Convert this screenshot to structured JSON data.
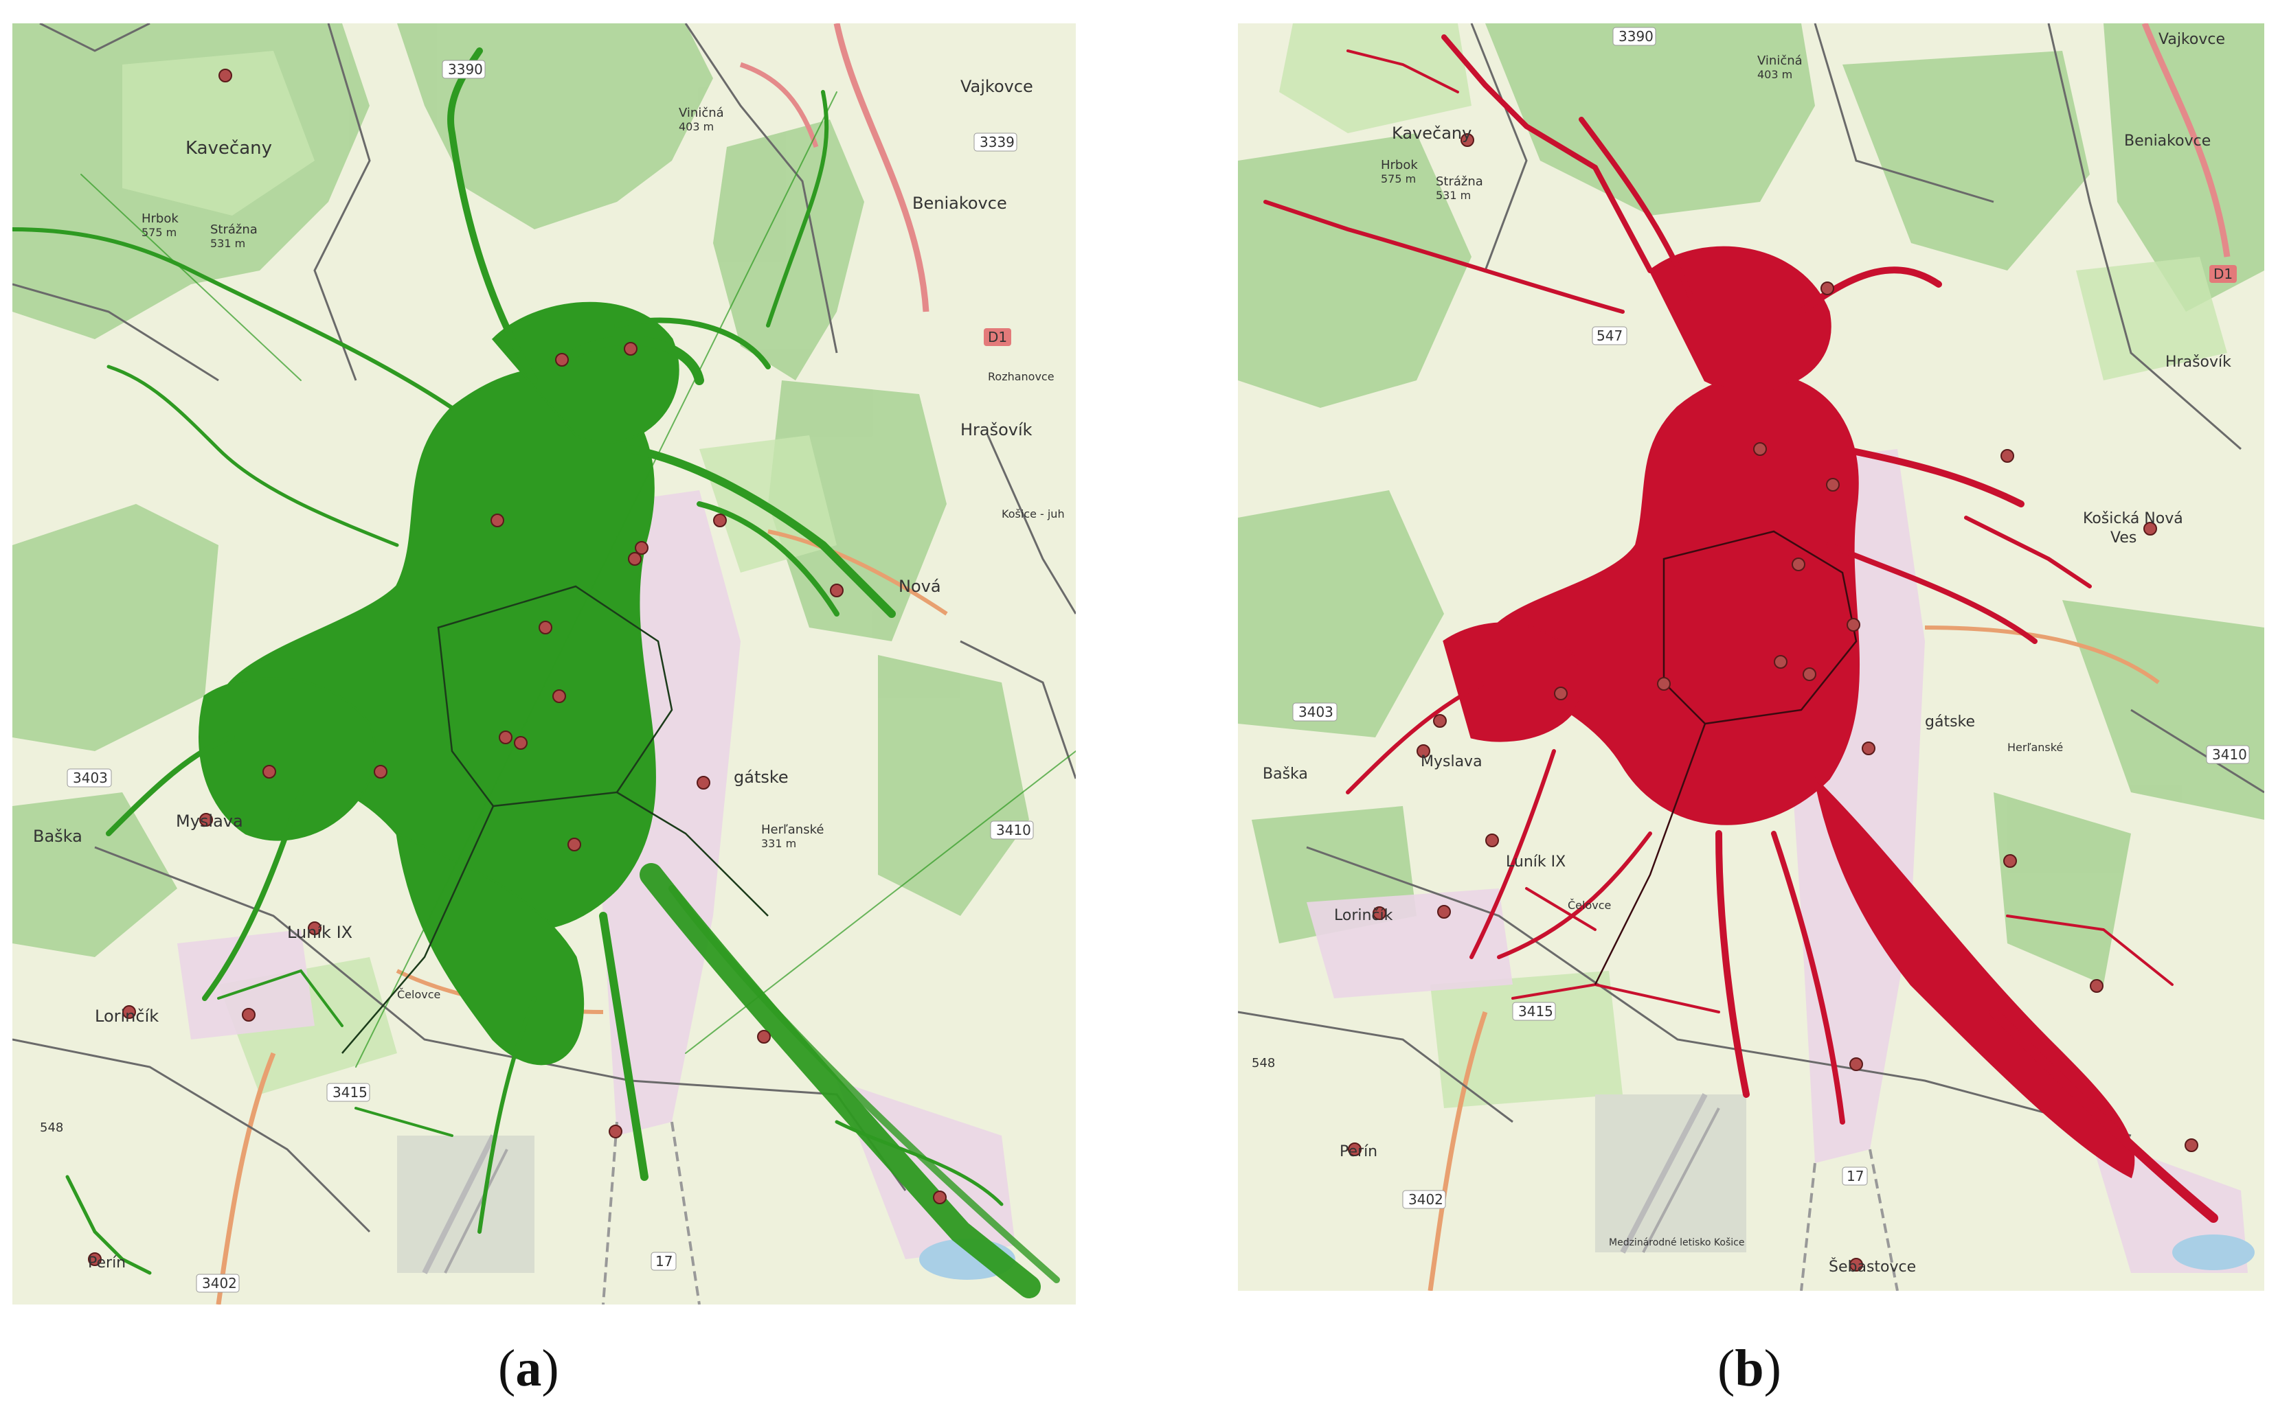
{
  "figure": {
    "captions": [
      {
        "paren_open": "(",
        "letter": "a",
        "paren_close": ")"
      },
      {
        "paren_open": "(",
        "letter": "b",
        "paren_close": ")"
      }
    ]
  },
  "maps": {
    "a": {
      "track_color": "#2e9a21",
      "labels": {
        "road_3390": "3390",
        "kavecany": "Kavečany",
        "hrbok": "Hrbok",
        "hrbok_elev": "575 m",
        "strazna": "Strážna",
        "strazna_elev": "531 m",
        "vinicna": "Viničná",
        "vinicna_elev": "403 m",
        "beniakovce": "Beniakovce",
        "vajkovce": "Vajkovce",
        "road_3339": "3339",
        "road_d1": "D1",
        "hrasovik": "Hrašovík",
        "nova": "Nová",
        "road_3403": "3403",
        "baska": "Baška",
        "myslava": "Myslava",
        "lorincik": "Lorinčík",
        "lunik_ix": "Luník IX",
        "road_3415": "3415",
        "road_3410": "3410",
        "road_3402": "3402",
        "road_548": "548",
        "road_17": "17",
        "perin": "Perín",
        "herlianske": "Herľanské",
        "herlianske_elev": "331 m",
        "gatske": "gátske",
        "celovce": "Čelovce",
        "rozhanovce": "Rozhanovce",
        "kosice_juh": "Košice - juh"
      }
    },
    "b": {
      "track_color": "#c8102e",
      "labels": {
        "road_3390": "3390",
        "kavecany": "Kavečany",
        "hrbok": "Hrbok",
        "hrbok_elev": "575 m",
        "strazna": "Strážna",
        "strazna_elev": "531 m",
        "vinicna": "Viničná",
        "vinicna_elev": "403 m",
        "vajkovce": "Vajkovce",
        "beniakovce": "Beniakovce",
        "road_d1": "D1",
        "road_547": "547",
        "hrasovik": "Hrašovík",
        "kosicka_nova_ves": "Košická Nová",
        "ves": "Ves",
        "road_3403": "3403",
        "baska": "Baška",
        "myslava": "Myslava",
        "lunik_ix": "Luník IX",
        "lorincik": "Lorinčík",
        "road_3415": "3415",
        "road_3410": "3410",
        "road_3402": "3402",
        "road_548": "548",
        "road_17": "17",
        "perin": "Perín",
        "sebastovce": "Šebastovce",
        "gatske": "gátske",
        "herlianske": "Herľanské",
        "airport": "Medzinárodné letisko Košice",
        "celovce": "Čelovce"
      }
    }
  }
}
